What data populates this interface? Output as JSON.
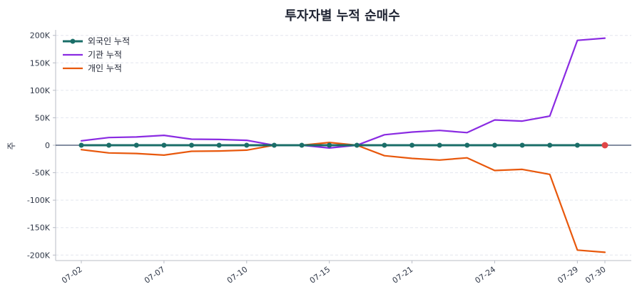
{
  "chart_data": {
    "type": "line",
    "title": "투자자별 누적 순매수",
    "ylabel": "주",
    "xlabel": "",
    "ylim": [
      -210000,
      210000
    ],
    "y_ticks": [
      -200000,
      -150000,
      -100000,
      -50000,
      0,
      50000,
      100000,
      150000,
      200000
    ],
    "y_tick_labels": [
      "-200K",
      "-150K",
      "-100K",
      "-50K",
      "0",
      "50K",
      "100K",
      "150K",
      "200K"
    ],
    "x_tick_labels": [
      "07-02",
      "07-07",
      "07-10",
      "07-15",
      "07-21",
      "07-24",
      "07-29",
      "07-30"
    ],
    "legend_position": "top-left",
    "grid": true,
    "colors": {
      "foreign": "#1a6e68",
      "institution": "#8a2be2",
      "individual": "#e8580c",
      "highlight": "#e04646",
      "zero_line": "#3a4a6a"
    },
    "x_count": 20,
    "x_tick_indices": [
      0,
      3,
      6,
      9,
      12,
      15,
      18,
      19
    ],
    "series": [
      {
        "key": "foreign",
        "name": "외국인 누적",
        "values": [
          0,
          0,
          0,
          0,
          0,
          0,
          0,
          0,
          0,
          0,
          0,
          0,
          0,
          0,
          0,
          0,
          0,
          0,
          0,
          0
        ]
      },
      {
        "key": "institution",
        "name": "기관 누적",
        "values": [
          8000,
          14000,
          15000,
          18000,
          11000,
          10500,
          9000,
          0,
          0,
          -5000,
          0,
          19000,
          24000,
          27000,
          23000,
          46000,
          44000,
          53000,
          191000,
          195000
        ]
      },
      {
        "key": "individual",
        "name": "개인 누적",
        "values": [
          -8000,
          -14000,
          -15000,
          -18000,
          -11000,
          -10500,
          -9000,
          0,
          0,
          5000,
          0,
          -19000,
          -24000,
          -27000,
          -23000,
          -46000,
          -44000,
          -53000,
          -191000,
          -195000
        ]
      }
    ]
  }
}
